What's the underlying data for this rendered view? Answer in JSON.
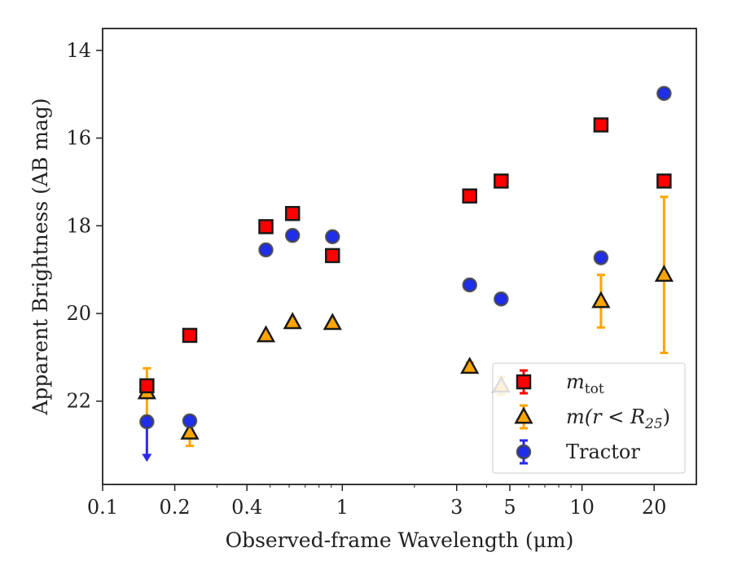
{
  "chart_data": {
    "type": "scatter",
    "xlabel": "Observed-frame Wavelength (μm)",
    "ylabel": "Apparent Brightness (AB mag)",
    "xscale": "log",
    "xlim": [
      0.1,
      30
    ],
    "ylim": [
      23.9,
      13.5
    ],
    "y_inverted": true,
    "grid": false,
    "legend_position": "lower-right",
    "x_ticks": [
      0.1,
      0.2,
      0.4,
      1,
      3,
      5,
      10,
      20
    ],
    "x_tick_labels": [
      "0.1",
      "0.2",
      "0.4",
      "1",
      "3",
      "5",
      "10",
      "20"
    ],
    "y_ticks": [
      14,
      16,
      18,
      20,
      22
    ],
    "y_tick_labels": [
      "14",
      "16",
      "18",
      "20",
      "22"
    ],
    "series": [
      {
        "name": "m_tot",
        "legend_main": "m",
        "legend_sub": "tot",
        "marker": "square",
        "color": "#ff0000",
        "edge": "#1a1a1a",
        "errcolor": "#ff0000",
        "points": [
          {
            "x": 0.153,
            "y": 21.65,
            "err": 0.1
          },
          {
            "x": 0.231,
            "y": 20.5,
            "err": 0.05
          },
          {
            "x": 0.48,
            "y": 18.02,
            "err": 0.05
          },
          {
            "x": 0.62,
            "y": 17.72,
            "err": 0.05
          },
          {
            "x": 0.91,
            "y": 18.68,
            "err": 0.05
          },
          {
            "x": 3.4,
            "y": 17.32,
            "err": 0.05
          },
          {
            "x": 4.6,
            "y": 16.98,
            "err": 0.05
          },
          {
            "x": 12.0,
            "y": 15.7,
            "err": 0.05
          },
          {
            "x": 22.0,
            "y": 16.98,
            "err": 0.05
          }
        ]
      },
      {
        "name": "m(r < R25)",
        "legend_main": "m(r < R",
        "legend_sub": "25",
        "legend_tail": ")",
        "marker": "triangle",
        "color": "#ffa500",
        "edge": "#1a1a1a",
        "errcolor": "#ffa500",
        "points": [
          {
            "x": 0.153,
            "y": 21.8,
            "err": 0.55
          },
          {
            "x": 0.231,
            "y": 22.72,
            "err": 0.3
          },
          {
            "x": 0.48,
            "y": 20.5,
            "err": 0.05
          },
          {
            "x": 0.62,
            "y": 20.2,
            "err": 0.05
          },
          {
            "x": 0.91,
            "y": 20.22,
            "err": 0.05
          },
          {
            "x": 3.4,
            "y": 21.22,
            "err": 0.1
          },
          {
            "x": 4.6,
            "y": 21.65,
            "err": 0.2
          },
          {
            "x": 12.0,
            "y": 19.72,
            "err": 0.6
          },
          {
            "x": 22.0,
            "y": 19.12,
            "err": 1.78
          }
        ]
      },
      {
        "name": "Tractor",
        "legend_main": "Tractor",
        "marker": "circle",
        "color": "#1f2ee8",
        "edge": "#444444",
        "errcolor": "#2a2ae8",
        "points": [
          {
            "x": 0.153,
            "y": 22.47,
            "err": 0.05,
            "upper_limit": true,
            "arrow_to": 23.35
          },
          {
            "x": 0.231,
            "y": 22.45,
            "err": 0.05
          },
          {
            "x": 0.48,
            "y": 18.55,
            "err": 0.05
          },
          {
            "x": 0.62,
            "y": 18.22,
            "err": 0.05
          },
          {
            "x": 0.91,
            "y": 18.25,
            "err": 0.05
          },
          {
            "x": 3.4,
            "y": 19.35,
            "err": 0.05
          },
          {
            "x": 4.6,
            "y": 19.67,
            "err": 0.05
          },
          {
            "x": 12.0,
            "y": 18.73,
            "err": 0.05
          },
          {
            "x": 22.0,
            "y": 14.98,
            "err": 0.05
          }
        ]
      }
    ]
  }
}
